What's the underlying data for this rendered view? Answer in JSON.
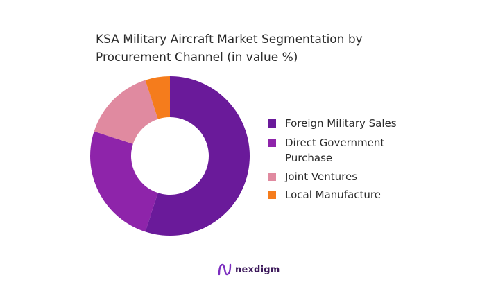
{
  "chart_data": {
    "type": "pie",
    "variant": "donut",
    "title": "KSA Military Aircraft Market Segmentation by Procurement Channel (in value %)",
    "title_lines": [
      "KSA Military Aircraft Market Segmentation by",
      "Procurement Channel (in value %)"
    ],
    "categories": [
      "Foreign Military Sales",
      "Direct Government Purchase",
      "Joint Ventures",
      "Local Manufacture"
    ],
    "legend_lines": [
      [
        "Foreign Military Sales"
      ],
      [
        "Direct Government",
        "Purchase"
      ],
      [
        "Joint Ventures"
      ],
      [
        "Local Manufacture"
      ]
    ],
    "values": [
      55,
      25,
      15,
      5
    ],
    "colors": [
      "#6a1a9a",
      "#8e24aa",
      "#e08aa0",
      "#f57c1c"
    ],
    "legend_position": "right"
  },
  "brand": {
    "name": "nexdigm",
    "logo_icon": "nexdigm-logo-icon",
    "logo_color": "#7b2cbf"
  }
}
